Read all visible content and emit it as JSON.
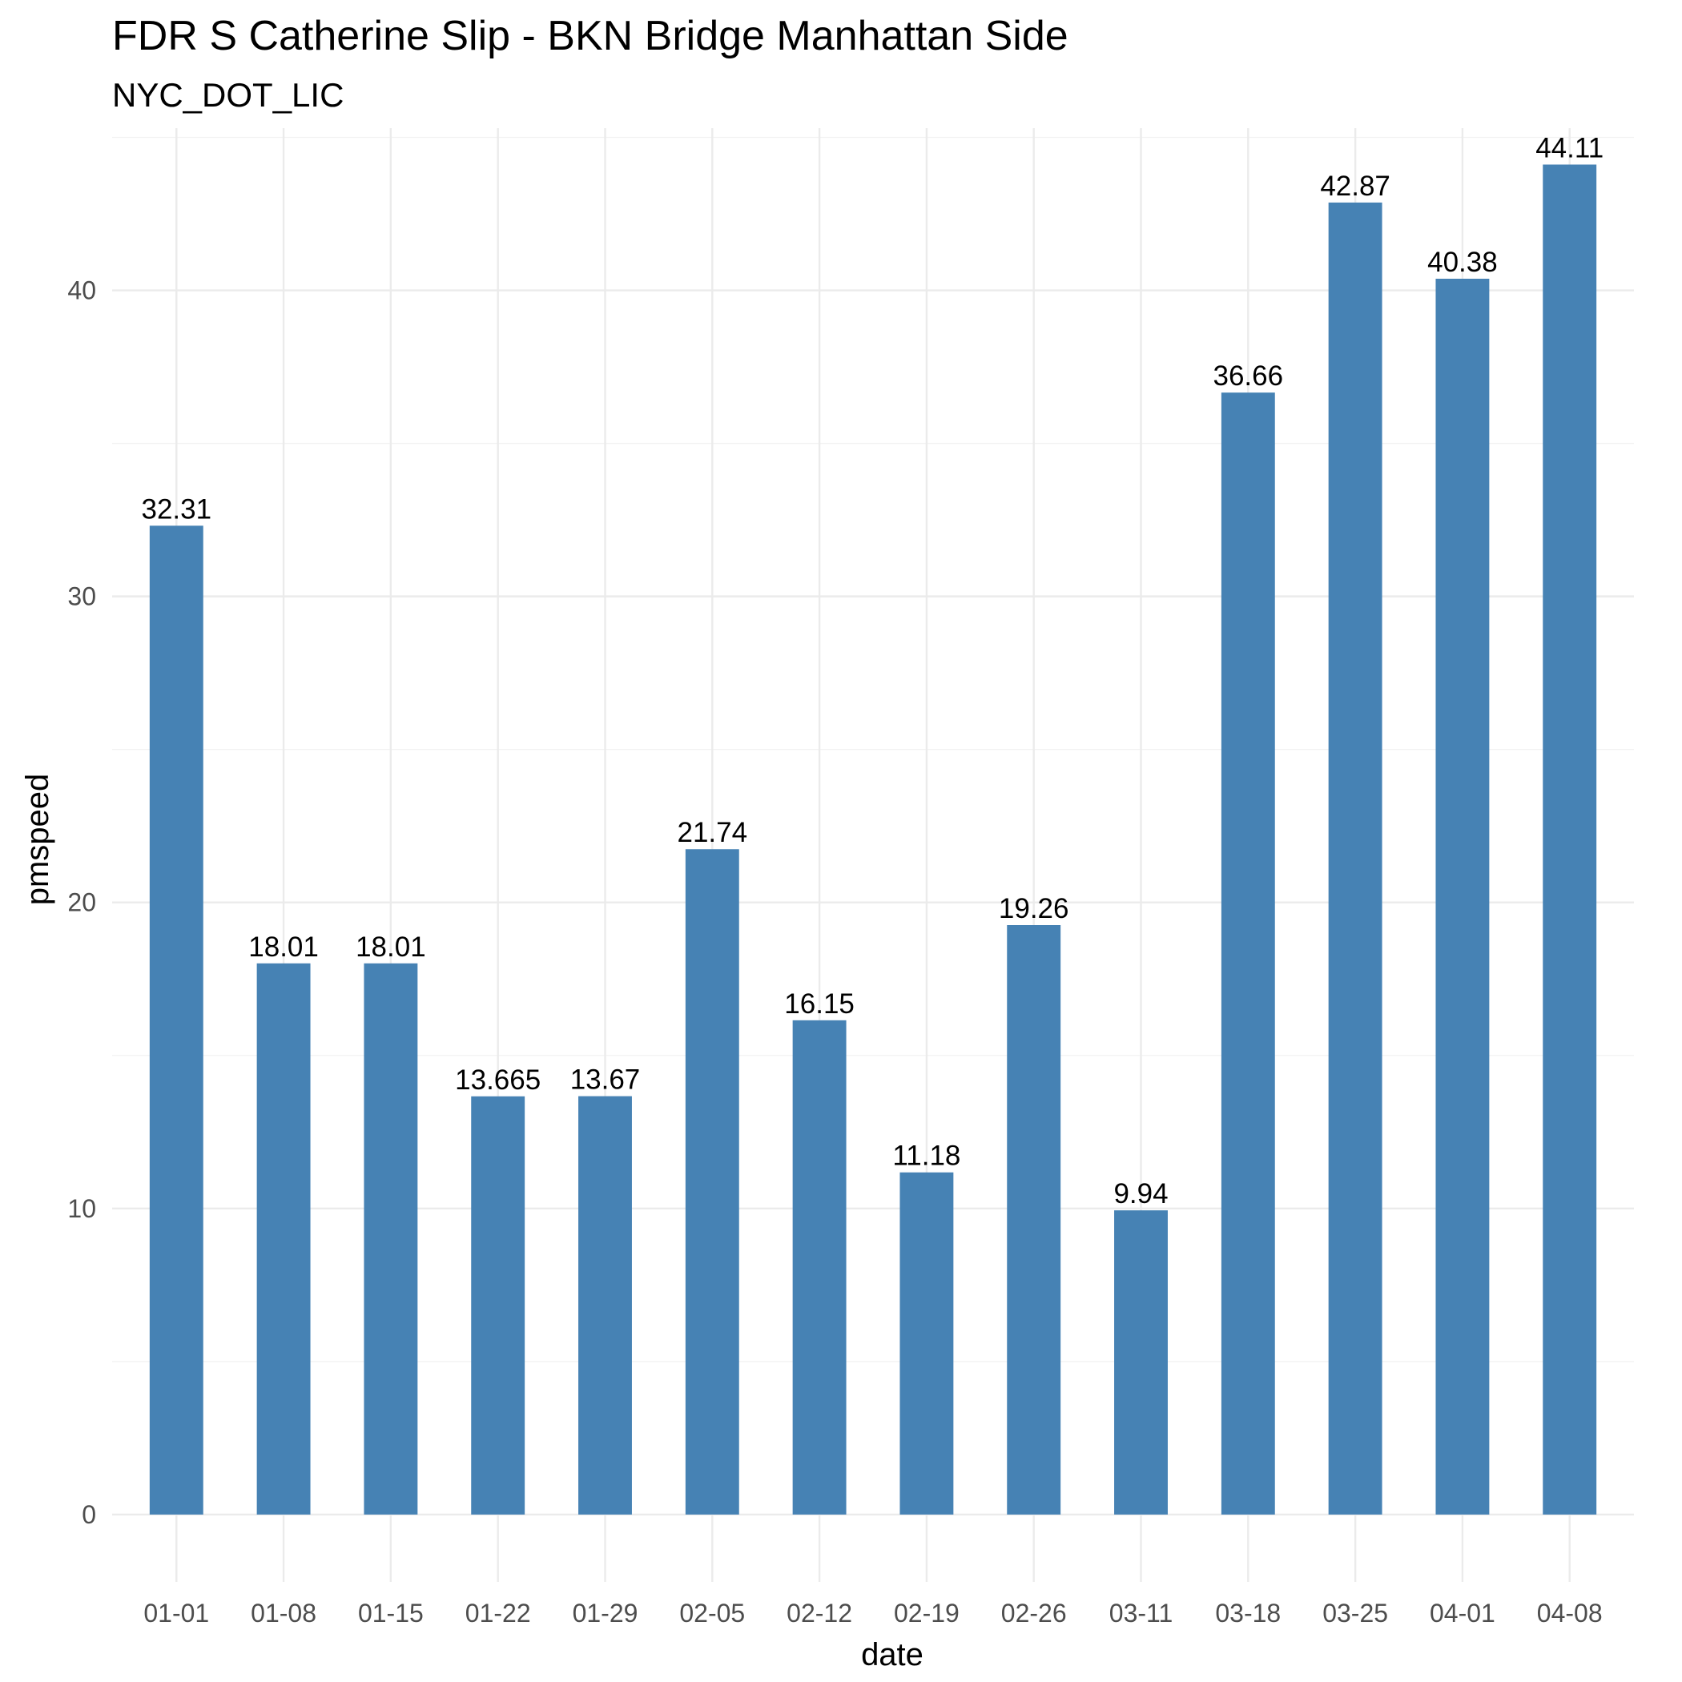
{
  "chart_data": {
    "type": "bar",
    "title": "FDR S Catherine Slip - BKN Bridge Manhattan Side",
    "subtitle": "NYC_DOT_LIC",
    "xlabel": "date",
    "ylabel": "pmspeed",
    "categories": [
      "01-01",
      "01-08",
      "01-15",
      "01-22",
      "01-29",
      "02-05",
      "02-12",
      "02-19",
      "02-26",
      "03-11",
      "03-18",
      "03-25",
      "04-01",
      "04-08"
    ],
    "values": [
      32.31,
      18.01,
      18.01,
      13.665,
      13.67,
      21.74,
      16.15,
      11.18,
      19.26,
      9.94,
      36.66,
      42.87,
      40.38,
      44.11
    ],
    "value_labels": [
      "32.31",
      "18.01",
      "18.01",
      "13.665",
      "13.67",
      "21.74",
      "16.15",
      "11.18",
      "19.26",
      "9.94",
      "36.66",
      "42.87",
      "40.38",
      "44.11"
    ],
    "ylim": [
      -2.2,
      45.3
    ],
    "yticks": [
      0,
      10,
      20,
      30,
      40
    ],
    "ytick_labels": [
      "0",
      "10",
      "20",
      "30",
      "40"
    ],
    "grid": true,
    "bar_color": "#4682B4"
  }
}
